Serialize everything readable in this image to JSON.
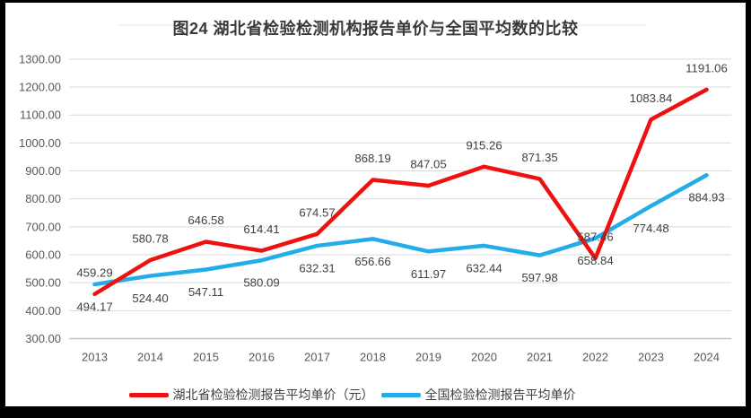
{
  "title": "图24 湖北省检验检测机构报告单价与全国平均数的比较",
  "chart_data": {
    "type": "line",
    "categories": [
      "2013",
      "2014",
      "2015",
      "2016",
      "2017",
      "2018",
      "2019",
      "2020",
      "2021",
      "2022",
      "2023",
      "2024"
    ],
    "series": [
      {
        "name": "全国检验检测报告平均单价",
        "slug": "national",
        "color": "#22ade8",
        "label_position": "below",
        "values": [
          494.17,
          524.4,
          547.11,
          580.09,
          632.31,
          656.66,
          611.97,
          632.44,
          597.98,
          658.84,
          774.48,
          884.93
        ]
      },
      {
        "name": "湖北省检验检测报告平均单价（元）",
        "slug": "hubei",
        "color": "#ee1111",
        "label_position": "above",
        "values": [
          459.29,
          580.78,
          646.58,
          614.41,
          674.57,
          868.19,
          847.05,
          915.26,
          871.35,
          587.46,
          1083.84,
          1191.06
        ]
      }
    ],
    "y_axis": {
      "min": 300,
      "max": 1300,
      "step": 100,
      "tick_labels": [
        "300.00",
        "400.00",
        "500.00",
        "600.00",
        "700.00",
        "800.00",
        "900.00",
        "1000.00",
        "1100.00",
        "1200.00",
        "1300.00"
      ]
    },
    "x_axis": {
      "tick_labels": [
        "2013",
        "2014",
        "2015",
        "2016",
        "2017",
        "2018",
        "2019",
        "2020",
        "2021",
        "2022",
        "2023",
        "2024"
      ]
    },
    "grid": true,
    "legend_position": "bottom",
    "data_labels_decimals": 2
  },
  "colors": {
    "hubei_line": "#ee1111",
    "national_line": "#22ade8",
    "gridline": "#d9d9d9",
    "axis_line": "#bfbfbf",
    "tick_text": "#595959",
    "data_label_text": "#404040",
    "title_text": "#3a3a3a",
    "frame": "#000000",
    "chart_background": "#ffffff"
  }
}
